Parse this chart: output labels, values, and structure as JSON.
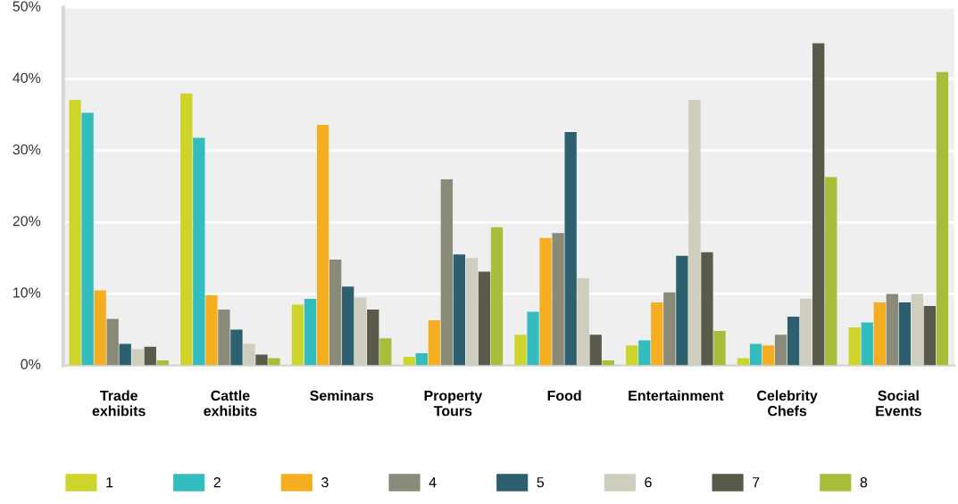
{
  "chart_data": {
    "type": "bar",
    "categories": [
      "Trade\nexhibits",
      "Cattle\nexhibits",
      "Seminars",
      "Property\nTours",
      "Food",
      "Entertainment",
      "Celebrity\nChefs",
      "Social\nEvents"
    ],
    "series": [
      {
        "name": "1",
        "color": "#cdd52a",
        "values": [
          37.1,
          38.0,
          8.5,
          1.2,
          4.3,
          2.8,
          1.0,
          5.3
        ]
      },
      {
        "name": "2",
        "color": "#33bdbf",
        "values": [
          35.3,
          31.8,
          9.3,
          1.7,
          7.5,
          3.5,
          3.0,
          6.0
        ]
      },
      {
        "name": "3",
        "color": "#f5ae20",
        "values": [
          10.5,
          9.8,
          33.6,
          6.3,
          17.8,
          8.8,
          2.8,
          8.8
        ]
      },
      {
        "name": "4",
        "color": "#8a8a78",
        "values": [
          6.5,
          7.8,
          14.8,
          26.0,
          18.5,
          10.2,
          4.3,
          10.0
        ]
      },
      {
        "name": "5",
        "color": "#2e5f6e",
        "values": [
          3.0,
          5.0,
          11.0,
          15.5,
          32.6,
          15.3,
          6.8,
          8.8
        ]
      },
      {
        "name": "6",
        "color": "#cfcdbe",
        "values": [
          2.3,
          3.0,
          9.5,
          15.0,
          12.2,
          37.1,
          9.3,
          10.0
        ]
      },
      {
        "name": "7",
        "color": "#5a5a4a",
        "values": [
          2.6,
          1.5,
          7.8,
          13.1,
          4.3,
          15.8,
          45.0,
          8.3
        ]
      },
      {
        "name": "8",
        "color": "#a8bd3a",
        "values": [
          0.7,
          1.0,
          3.8,
          19.3,
          0.7,
          4.8,
          26.3,
          41.0
        ]
      }
    ],
    "ylim": [
      0,
      50
    ],
    "yticks": [
      {
        "value": 0,
        "label": "0%"
      },
      {
        "value": 10,
        "label": "10%"
      },
      {
        "value": 20,
        "label": "20%"
      },
      {
        "value": 30,
        "label": "30%"
      },
      {
        "value": 40,
        "label": "40%"
      },
      {
        "value": 50,
        "label": "50%"
      }
    ],
    "grid": "y",
    "legend": "bottom"
  }
}
